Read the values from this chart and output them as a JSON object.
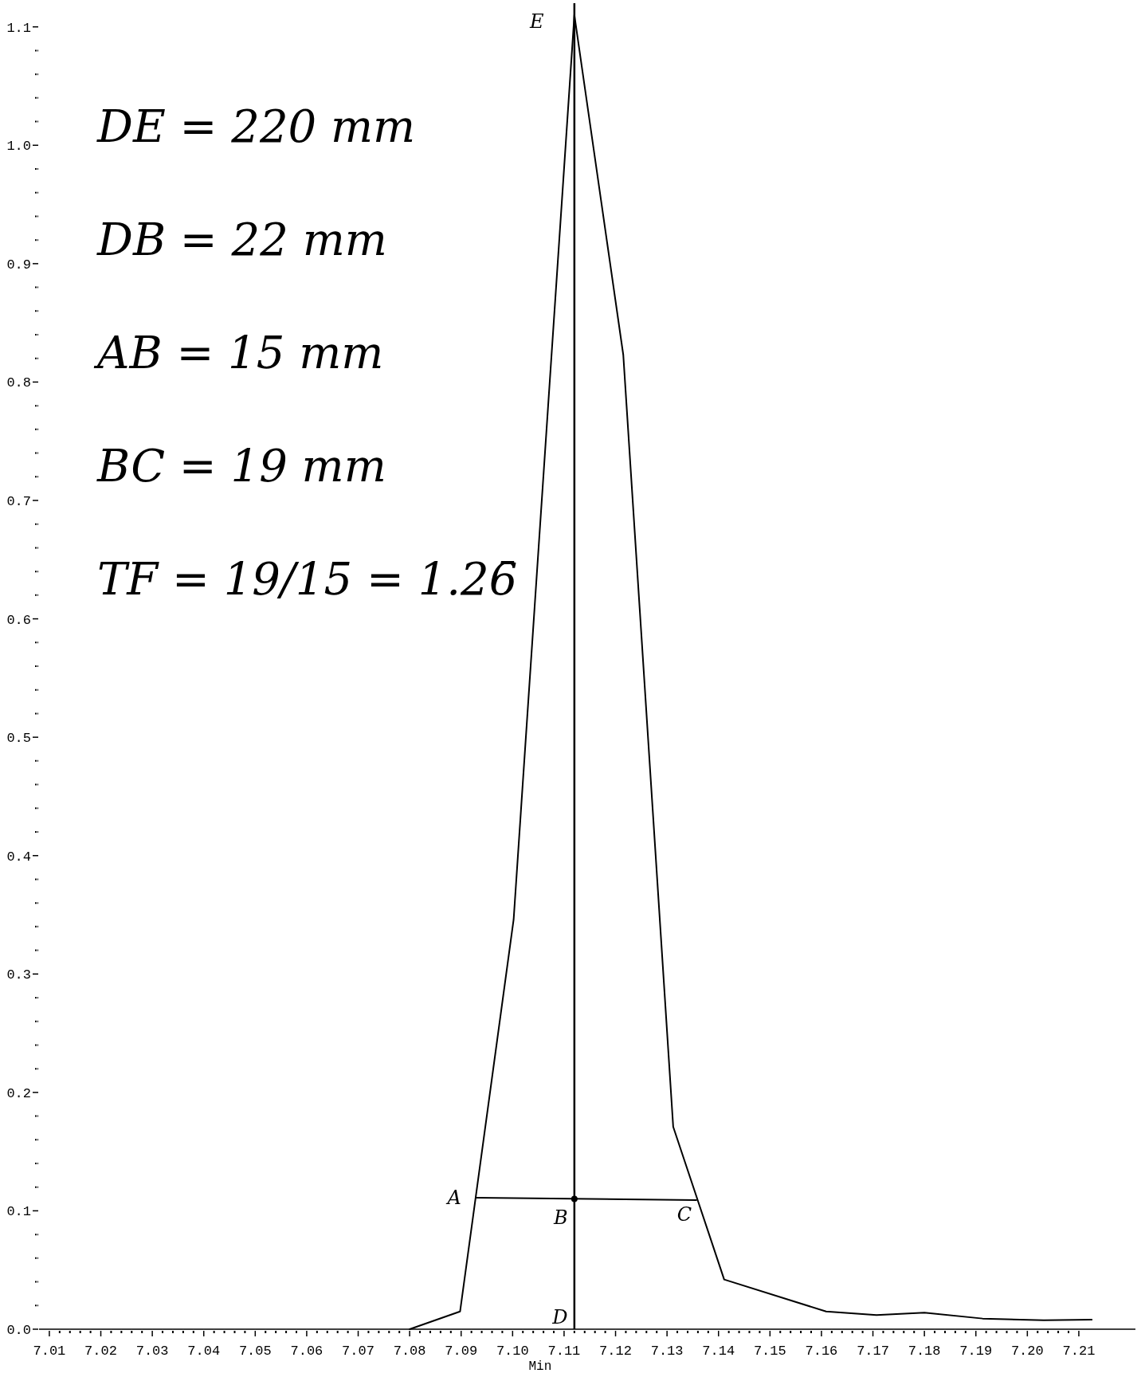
{
  "chart_data": {
    "type": "line",
    "xlabel": "Min",
    "annotations": [
      "DE = 220 mm",
      "DB = 22 mm",
      "AB = 15 mm",
      "BC = 19 mm",
      "TF = 19/15 = 1.26̄",
      {
        "text": "A",
        "x": 7.093,
        "y": 0.111
      },
      {
        "text": "B",
        "x": 7.112,
        "y": 0.11
      },
      {
        "text": "C",
        "x": 7.1357,
        "y": 0.109
      },
      {
        "text": "D",
        "x": 7.112,
        "y": 0
      },
      {
        "text": "E",
        "x": 7.112,
        "y": 1.11
      }
    ],
    "xlim": [
      7.008,
      7.221
    ],
    "ylim": [
      0,
      1.12
    ],
    "xticks": [
      {
        "value": 7.01,
        "label": "7.01"
      },
      {
        "value": 7.012,
        "label": null
      },
      {
        "value": 7.014,
        "label": null
      },
      {
        "value": 7.016,
        "label": null
      },
      {
        "value": 7.018,
        "label": null
      },
      {
        "value": 7.02,
        "label": "7.02"
      },
      {
        "value": 7.022,
        "label": null
      },
      {
        "value": 7.024,
        "label": null
      },
      {
        "value": 7.026,
        "label": null
      },
      {
        "value": 7.028,
        "label": null
      },
      {
        "value": 7.03,
        "label": "7.03"
      },
      {
        "value": 7.032,
        "label": null
      },
      {
        "value": 7.034,
        "label": null
      },
      {
        "value": 7.036,
        "label": null
      },
      {
        "value": 7.038,
        "label": null
      },
      {
        "value": 7.04,
        "label": "7.04"
      },
      {
        "value": 7.042,
        "label": null
      },
      {
        "value": 7.044,
        "label": null
      },
      {
        "value": 7.046,
        "label": null
      },
      {
        "value": 7.048,
        "label": null
      },
      {
        "value": 7.05,
        "label": "7.05"
      },
      {
        "value": 7.052,
        "label": null
      },
      {
        "value": 7.054,
        "label": null
      },
      {
        "value": 7.056,
        "label": null
      },
      {
        "value": 7.058,
        "label": null
      },
      {
        "value": 7.06,
        "label": "7.06"
      },
      {
        "value": 7.062,
        "label": null
      },
      {
        "value": 7.064,
        "label": null
      },
      {
        "value": 7.066,
        "label": null
      },
      {
        "value": 7.068,
        "label": null
      },
      {
        "value": 7.07,
        "label": "7.07"
      },
      {
        "value": 7.072,
        "label": null
      },
      {
        "value": 7.074,
        "label": null
      },
      {
        "value": 7.076,
        "label": null
      },
      {
        "value": 7.078,
        "label": null
      },
      {
        "value": 7.08,
        "label": "7.08"
      },
      {
        "value": 7.082,
        "label": null
      },
      {
        "value": 7.084,
        "label": null
      },
      {
        "value": 7.086,
        "label": null
      },
      {
        "value": 7.088,
        "label": null
      },
      {
        "value": 7.09,
        "label": "7.09"
      },
      {
        "value": 7.092,
        "label": null
      },
      {
        "value": 7.094,
        "label": null
      },
      {
        "value": 7.096,
        "label": null
      },
      {
        "value": 7.098,
        "label": null
      },
      {
        "value": 7.1,
        "label": "7.10"
      },
      {
        "value": 7.102,
        "label": null
      },
      {
        "value": 7.104,
        "label": null
      },
      {
        "value": 7.106,
        "label": null
      },
      {
        "value": 7.108,
        "label": null
      },
      {
        "value": 7.11,
        "label": "7.11"
      },
      {
        "value": 7.112,
        "label": null
      },
      {
        "value": 7.114,
        "label": null
      },
      {
        "value": 7.116,
        "label": null
      },
      {
        "value": 7.118,
        "label": null
      },
      {
        "value": 7.12,
        "label": "7.12"
      },
      {
        "value": 7.122,
        "label": null
      },
      {
        "value": 7.124,
        "label": null
      },
      {
        "value": 7.126,
        "label": null
      },
      {
        "value": 7.128,
        "label": null
      },
      {
        "value": 7.13,
        "label": "7.13"
      },
      {
        "value": 7.132,
        "label": null
      },
      {
        "value": 7.134,
        "label": null
      },
      {
        "value": 7.136,
        "label": null
      },
      {
        "value": 7.138,
        "label": null
      },
      {
        "value": 7.14,
        "label": "7.14"
      },
      {
        "value": 7.142,
        "label": null
      },
      {
        "value": 7.144,
        "label": null
      },
      {
        "value": 7.146,
        "label": null
      },
      {
        "value": 7.148,
        "label": null
      },
      {
        "value": 7.15,
        "label": "7.15"
      },
      {
        "value": 7.152,
        "label": null
      },
      {
        "value": 7.154,
        "label": null
      },
      {
        "value": 7.156,
        "label": null
      },
      {
        "value": 7.158,
        "label": null
      },
      {
        "value": 7.16,
        "label": "7.16"
      },
      {
        "value": 7.162,
        "label": null
      },
      {
        "value": 7.164,
        "label": null
      },
      {
        "value": 7.166,
        "label": null
      },
      {
        "value": 7.168,
        "label": null
      },
      {
        "value": 7.17,
        "label": "7.17"
      },
      {
        "value": 7.172,
        "label": null
      },
      {
        "value": 7.174,
        "label": null
      },
      {
        "value": 7.176,
        "label": null
      },
      {
        "value": 7.178,
        "label": null
      },
      {
        "value": 7.18,
        "label": "7.18"
      },
      {
        "value": 7.182,
        "label": null
      },
      {
        "value": 7.184,
        "label": null
      },
      {
        "value": 7.186,
        "label": null
      },
      {
        "value": 7.188,
        "label": null
      },
      {
        "value": 7.19,
        "label": "7.19"
      },
      {
        "value": 7.192,
        "label": null
      },
      {
        "value": 7.194,
        "label": null
      },
      {
        "value": 7.196,
        "label": null
      },
      {
        "value": 7.198,
        "label": null
      },
      {
        "value": 7.2,
        "label": "7.20"
      },
      {
        "value": 7.202,
        "label": null
      },
      {
        "value": 7.204,
        "label": null
      },
      {
        "value": 7.206,
        "label": null
      },
      {
        "value": 7.208,
        "label": null
      },
      {
        "value": 7.21,
        "label": "7.21"
      }
    ],
    "yticks": [
      {
        "value": 0,
        "label": "0.0"
      },
      {
        "value": 0.02,
        "label": null
      },
      {
        "value": 0.04,
        "label": null
      },
      {
        "value": 0.06,
        "label": null
      },
      {
        "value": 0.08,
        "label": null
      },
      {
        "value": 0.1,
        "label": "0.1"
      },
      {
        "value": 0.12,
        "label": null
      },
      {
        "value": 0.14,
        "label": null
      },
      {
        "value": 0.16,
        "label": null
      },
      {
        "value": 0.18,
        "label": null
      },
      {
        "value": 0.2,
        "label": "0.2"
      },
      {
        "value": 0.22,
        "label": null
      },
      {
        "value": 0.24,
        "label": null
      },
      {
        "value": 0.26,
        "label": null
      },
      {
        "value": 0.28,
        "label": null
      },
      {
        "value": 0.3,
        "label": "0.3"
      },
      {
        "value": 0.32,
        "label": null
      },
      {
        "value": 0.34,
        "label": null
      },
      {
        "value": 0.36,
        "label": null
      },
      {
        "value": 0.38,
        "label": null
      },
      {
        "value": 0.4,
        "label": "0.4"
      },
      {
        "value": 0.42,
        "label": null
      },
      {
        "value": 0.44,
        "label": null
      },
      {
        "value": 0.46,
        "label": null
      },
      {
        "value": 0.48,
        "label": null
      },
      {
        "value": 0.5,
        "label": "0.5"
      },
      {
        "value": 0.52,
        "label": null
      },
      {
        "value": 0.54,
        "label": null
      },
      {
        "value": 0.56,
        "label": null
      },
      {
        "value": 0.58,
        "label": null
      },
      {
        "value": 0.6,
        "label": "0.6"
      },
      {
        "value": 0.62,
        "label": null
      },
      {
        "value": 0.64,
        "label": null
      },
      {
        "value": 0.66,
        "label": null
      },
      {
        "value": 0.68,
        "label": null
      },
      {
        "value": 0.7,
        "label": "0.7"
      },
      {
        "value": 0.72,
        "label": null
      },
      {
        "value": 0.74,
        "label": null
      },
      {
        "value": 0.76,
        "label": null
      },
      {
        "value": 0.78,
        "label": null
      },
      {
        "value": 0.8,
        "label": "0.8"
      },
      {
        "value": 0.82,
        "label": null
      },
      {
        "value": 0.84,
        "label": null
      },
      {
        "value": 0.86,
        "label": null
      },
      {
        "value": 0.88,
        "label": null
      },
      {
        "value": 0.9,
        "label": "0.9"
      },
      {
        "value": 0.92,
        "label": null
      },
      {
        "value": 0.94,
        "label": null
      },
      {
        "value": 0.96,
        "label": null
      },
      {
        "value": 0.98,
        "label": null
      },
      {
        "value": 1,
        "label": "1.0"
      },
      {
        "value": 1.02,
        "label": null
      },
      {
        "value": 1.04,
        "label": null
      },
      {
        "value": 1.06,
        "label": null
      },
      {
        "value": 1.08,
        "label": null
      },
      {
        "value": 1.1,
        "label": "1.1"
      }
    ],
    "ref_lines": [
      {
        "axis": "x",
        "value": 7.112,
        "color": "#000000"
      }
    ],
    "series": [
      {
        "color": "#000000",
        "x": [
          7.08,
          7.0898,
          7.1002,
          7.112,
          7.1215,
          7.1312,
          7.1411,
          7.1609,
          7.1707,
          7.18,
          7.1913,
          7.2032,
          7.2125
        ],
        "values": [
          0,
          0.015,
          0.346,
          1.11,
          0.823,
          0.171,
          0.042,
          0.015,
          0.012,
          0.014,
          0.009,
          0.0075,
          0.008
        ]
      },
      {
        "color": "#000000",
        "x": [
          7.093,
          7.1357
        ],
        "values": [
          0.111,
          0.109
        ]
      },
      {
        "type": "scatter",
        "marker": "circle",
        "color": "#000000",
        "x": [
          7.112
        ],
        "values": [
          0.11
        ]
      }
    ]
  }
}
